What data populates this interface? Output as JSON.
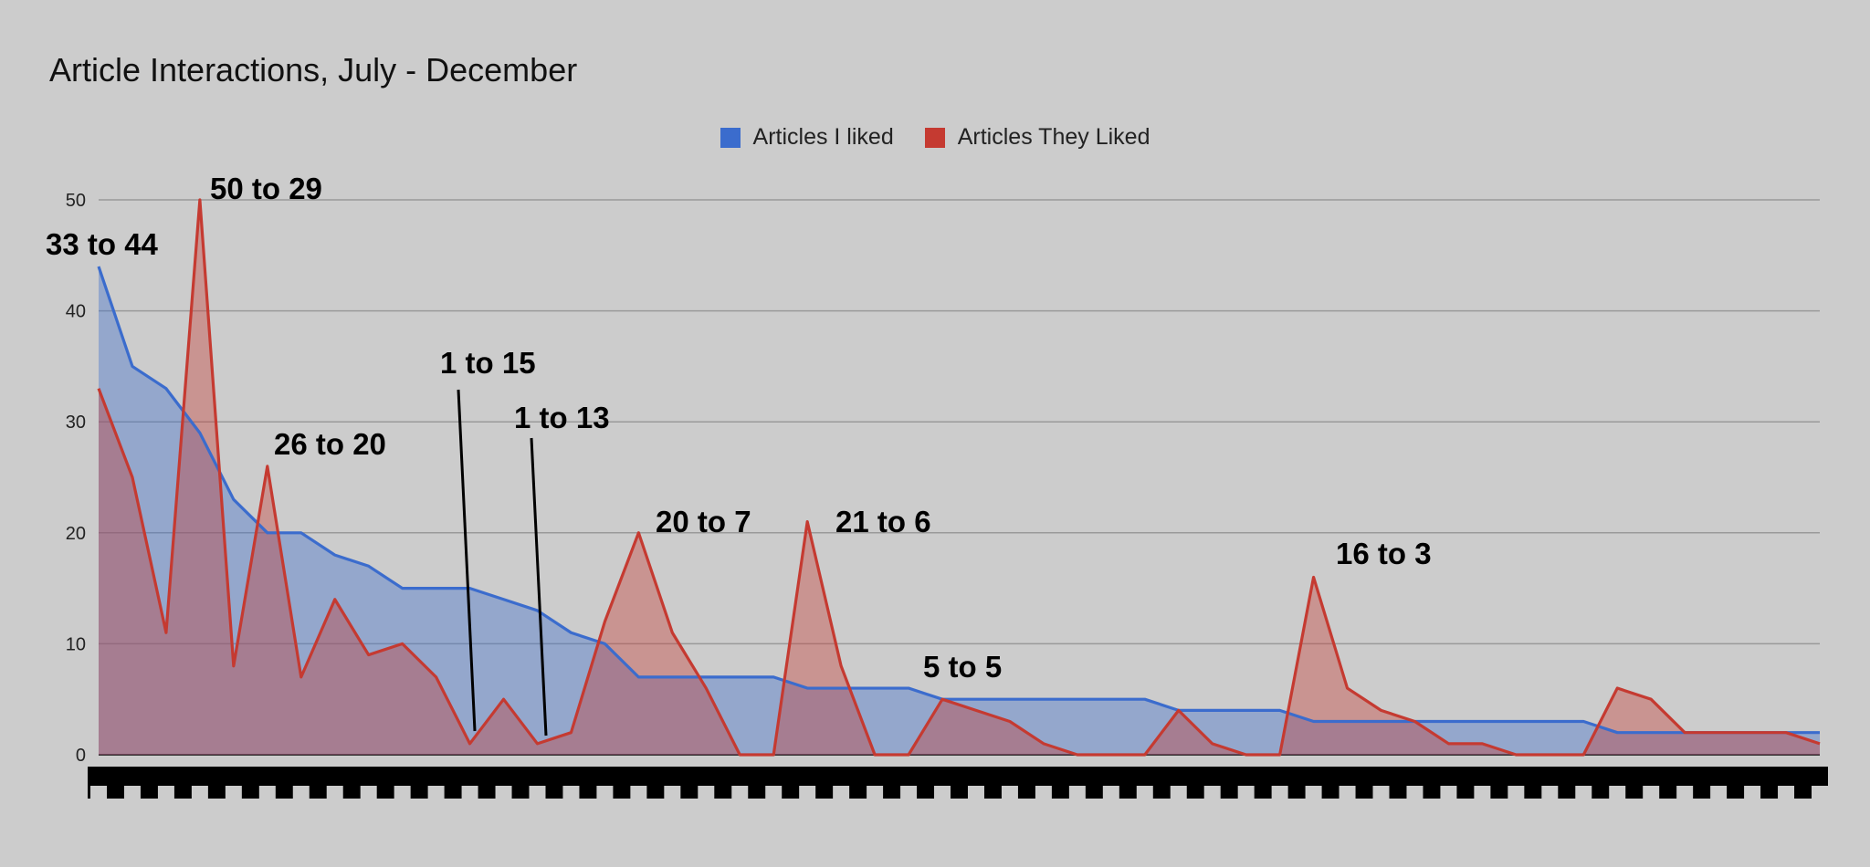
{
  "chart_data": {
    "type": "area",
    "title": "Article Interactions, July - December",
    "xlabel": "",
    "ylabel": "",
    "ylim": [
      0,
      50
    ],
    "y_ticks": [
      0,
      10,
      20,
      30,
      40,
      50
    ],
    "grid": true,
    "legend_position": "top-center",
    "x": [
      1,
      2,
      3,
      4,
      5,
      6,
      7,
      8,
      9,
      10,
      11,
      12,
      13,
      14,
      15,
      16,
      17,
      18,
      19,
      20,
      21,
      22,
      23,
      24,
      25,
      26,
      27,
      28,
      29,
      30,
      31,
      32,
      33,
      34,
      35,
      36,
      37,
      38,
      39,
      40,
      41,
      42,
      43,
      44,
      45,
      46,
      47,
      48,
      49,
      50,
      51,
      52
    ],
    "series": [
      {
        "name": "Articles I liked",
        "color": "#3b6ccd",
        "values": [
          44,
          35,
          33,
          29,
          23,
          20,
          20,
          18,
          17,
          15,
          15,
          15,
          14,
          13,
          11,
          10,
          7,
          7,
          7,
          7,
          7,
          6,
          6,
          6,
          6,
          5,
          5,
          5,
          5,
          5,
          5,
          5,
          4,
          4,
          4,
          4,
          3,
          3,
          3,
          3,
          3,
          3,
          3,
          3,
          3,
          2,
          2,
          2,
          2,
          2,
          2,
          2
        ]
      },
      {
        "name": "Articles They Liked",
        "color": "#c53a31",
        "values": [
          33,
          25,
          11,
          50,
          8,
          26,
          7,
          14,
          9,
          10,
          7,
          1,
          5,
          1,
          2,
          12,
          20,
          11,
          6,
          0,
          0,
          21,
          8,
          0,
          0,
          5,
          4,
          3,
          1,
          0,
          0,
          0,
          4,
          1,
          0,
          0,
          16,
          6,
          4,
          3,
          1,
          1,
          0,
          0,
          0,
          6,
          5,
          2,
          2,
          2,
          2,
          1
        ]
      }
    ],
    "annotations": [
      {
        "text": "33 to 44",
        "x": 1,
        "y": 44
      },
      {
        "text": "50 to 29",
        "x": 4,
        "y": 50
      },
      {
        "text": "26 to 20",
        "x": 6,
        "y": 26
      },
      {
        "text": "1 to 15",
        "x": 12,
        "y": 1
      },
      {
        "text": "1 to 13",
        "x": 14,
        "y": 1
      },
      {
        "text": "20 to 7",
        "x": 17,
        "y": 20
      },
      {
        "text": "21 to 6",
        "x": 22,
        "y": 21
      },
      {
        "text": "5 to 5",
        "x": 26,
        "y": 5
      },
      {
        "text": "16 to 3",
        "x": 37,
        "y": 16
      }
    ]
  }
}
